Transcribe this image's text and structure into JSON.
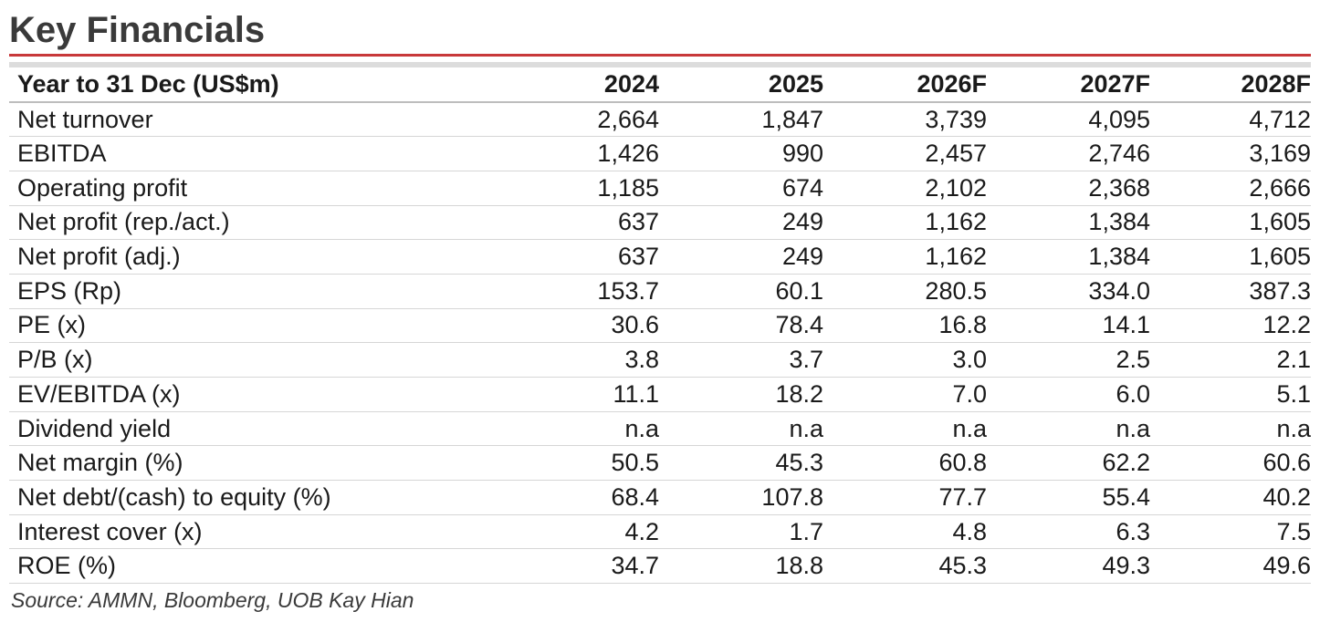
{
  "title": "Key Financials",
  "header": {
    "label": "Year to 31 Dec (US$m)",
    "years": [
      "2024",
      "2025",
      "2026F",
      "2027F",
      "2028F"
    ]
  },
  "rows": [
    {
      "label": "Net turnover",
      "values": [
        "2,664",
        "1,847",
        "3,739",
        "4,095",
        "4,712"
      ]
    },
    {
      "label": "EBITDA",
      "values": [
        "1,426",
        "990",
        "2,457",
        "2,746",
        "3,169"
      ]
    },
    {
      "label": "Operating profit",
      "values": [
        "1,185",
        "674",
        "2,102",
        "2,368",
        "2,666"
      ]
    },
    {
      "label": "Net profit (rep./act.)",
      "values": [
        "637",
        "249",
        "1,162",
        "1,384",
        "1,605"
      ]
    },
    {
      "label": "Net profit (adj.)",
      "values": [
        "637",
        "249",
        "1,162",
        "1,384",
        "1,605"
      ]
    },
    {
      "label": "EPS (Rp)",
      "values": [
        "153.7",
        "60.1",
        "280.5",
        "334.0",
        "387.3"
      ]
    },
    {
      "label": "PE (x)",
      "values": [
        "30.6",
        "78.4",
        "16.8",
        "14.1",
        "12.2"
      ]
    },
    {
      "label": "P/B (x)",
      "values": [
        "3.8",
        "3.7",
        "3.0",
        "2.5",
        "2.1"
      ]
    },
    {
      "label": "EV/EBITDA (x)",
      "values": [
        "11.1",
        "18.2",
        "7.0",
        "6.0",
        "5.1"
      ]
    },
    {
      "label": "Dividend yield",
      "values": [
        "n.a",
        "n.a",
        "n.a",
        "n.a",
        "n.a"
      ]
    },
    {
      "label": "Net margin (%)",
      "values": [
        "50.5",
        "45.3",
        "60.8",
        "62.2",
        "60.6"
      ]
    },
    {
      "label": "Net debt/(cash) to equity (%)",
      "values": [
        "68.4",
        "107.8",
        "77.7",
        "55.4",
        "40.2"
      ]
    },
    {
      "label": "Interest cover (x)",
      "values": [
        "4.2",
        "1.7",
        "4.8",
        "6.3",
        "7.5"
      ]
    },
    {
      "label": "ROE (%)",
      "values": [
        "34.7",
        "18.8",
        "45.3",
        "49.3",
        "49.6"
      ]
    }
  ],
  "source": "Source: AMMN, Bloomberg, UOB Kay Hian"
}
